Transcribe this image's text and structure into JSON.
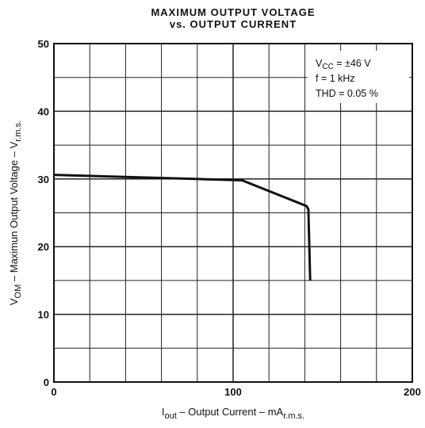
{
  "chart_data": {
    "type": "line",
    "title": [
      "MAXIMUM OUTPUT VOLTAGE",
      "vs. OUTPUT CURRENT"
    ],
    "xlabel": [
      "I",
      "out",
      " – Output  Current – mA",
      "r.m.s."
    ],
    "ylabel": [
      "V",
      "OM",
      " – Maximun Output Voltage – V",
      "r.m.s."
    ],
    "xlim": [
      0,
      200
    ],
    "ylim": [
      0,
      50
    ],
    "xticks": [
      0,
      100,
      200
    ],
    "yticks": [
      0,
      10,
      20,
      30,
      40,
      50
    ],
    "x_minor_ticks": [
      20,
      40,
      60,
      80,
      120,
      140,
      160,
      180
    ],
    "y_minor_ticks": [
      5,
      15,
      25,
      35,
      45
    ],
    "grid": true,
    "annotations": [
      [
        "V",
        "CC",
        " = ±46 V"
      ],
      [
        "f = 1 kHz"
      ],
      [
        "THD = 0.05 %"
      ]
    ],
    "series": [
      {
        "color": "#111111",
        "x": [
          0,
          105,
          141,
          142,
          143
        ],
        "values": [
          30.6,
          29.8,
          26,
          25.5,
          15
        ]
      }
    ]
  }
}
